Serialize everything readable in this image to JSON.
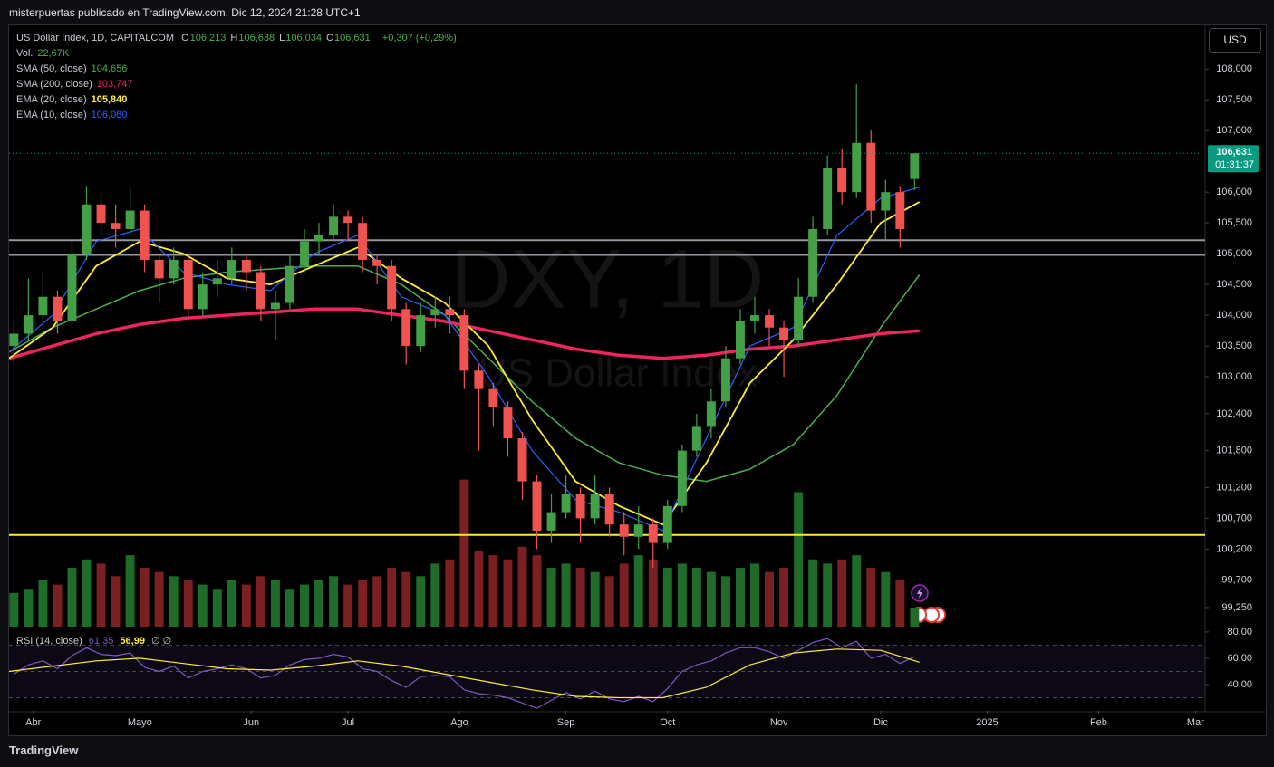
{
  "header": {
    "credit": "misterpuertas publicado en TradingView.com, Dic 12, 2024 21:28 UTC+1",
    "symbol": "US Dollar Index, 1D, CAPITALCOM",
    "ohlc": [
      {
        "label": "O",
        "value": "106,213"
      },
      {
        "label": "H",
        "value": "106,638"
      },
      {
        "label": "L",
        "value": "106,034"
      },
      {
        "label": "C",
        "value": "106,631"
      }
    ],
    "change": "+0,307 (+0,29%)",
    "currency": "USD",
    "brand": "TradingView"
  },
  "chart_data": {
    "type": "candlestick",
    "watermark": [
      "DXY, 1D",
      "US Dollar Index"
    ],
    "up_color": "#43a047",
    "down_color": "#ef5350",
    "grid": false,
    "xlim": [
      -5,
      242
    ],
    "xticks": [
      {
        "value": 0,
        "label": "Abr"
      },
      {
        "value": 22,
        "label": "Mayo"
      },
      {
        "value": 45,
        "label": "Jun"
      },
      {
        "value": 65,
        "label": "Jul"
      },
      {
        "value": 88,
        "label": "Ago"
      },
      {
        "value": 110,
        "label": "Sep"
      },
      {
        "value": 131,
        "label": "Oct"
      },
      {
        "value": 154,
        "label": "Nov"
      },
      {
        "value": 175,
        "label": "Dic"
      },
      {
        "value": 197,
        "label": "2025"
      },
      {
        "value": 220,
        "label": "Feb"
      },
      {
        "value": 240,
        "label": "Mar"
      }
    ],
    "ylim": [
      98.94,
      108.71
    ],
    "yticks": [
      {
        "value": 108,
        "label": "108,000"
      },
      {
        "value": 107.5,
        "label": "107,500"
      },
      {
        "value": 107,
        "label": "107,000"
      },
      {
        "value": 106,
        "label": "106,000"
      },
      {
        "value": 105.5,
        "label": "105,500"
      },
      {
        "value": 105,
        "label": "105,000"
      },
      {
        "value": 104.5,
        "label": "104,500"
      },
      {
        "value": 104,
        "label": "104,000"
      },
      {
        "value": 103.5,
        "label": "103,500"
      },
      {
        "value": 103,
        "label": "103,000"
      },
      {
        "value": 102.4,
        "label": "102,400"
      },
      {
        "value": 101.8,
        "label": "101,800"
      },
      {
        "value": 101.2,
        "label": "101,200"
      },
      {
        "value": 100.7,
        "label": "100,700"
      },
      {
        "value": 100.2,
        "label": "100,200"
      },
      {
        "value": 99.7,
        "label": "99,700"
      },
      {
        "value": 99.25,
        "label": "99,250"
      }
    ],
    "last_price": {
      "value": 106.631,
      "label": "106,631",
      "countdown": "01:31:37",
      "color": "#089981"
    },
    "hlines": [
      {
        "value": 105.22,
        "color": "#9598a1"
      },
      {
        "value": 104.98,
        "color": "#9598a1"
      },
      {
        "value": 100.43,
        "color": "#ffeb3b"
      }
    ],
    "candles": {
      "x": [
        -4,
        -1,
        2,
        5,
        8,
        11,
        14,
        17,
        20,
        23,
        26,
        29,
        32,
        35,
        38,
        41,
        44,
        47,
        50,
        53,
        56,
        59,
        62,
        65,
        68,
        71,
        74,
        77,
        80,
        83,
        86,
        89,
        92,
        95,
        98,
        101,
        104,
        107,
        110,
        113,
        116,
        119,
        122,
        125,
        128,
        131,
        134,
        137,
        140,
        143,
        146,
        149,
        152,
        155,
        158,
        161,
        164,
        167,
        170,
        173,
        176,
        179,
        182
      ],
      "open": [
        103.5,
        103.7,
        104.0,
        104.3,
        103.9,
        105.0,
        105.8,
        105.5,
        105.4,
        105.7,
        104.9,
        104.6,
        104.9,
        104.1,
        104.5,
        104.6,
        104.9,
        104.7,
        104.1,
        104.2,
        104.8,
        105.2,
        105.3,
        105.6,
        105.5,
        104.9,
        104.8,
        104.1,
        103.5,
        104.0,
        104.1,
        104.0,
        103.1,
        102.8,
        102.5,
        102.0,
        101.3,
        100.5,
        100.8,
        101.1,
        100.7,
        101.1,
        100.6,
        100.4,
        100.6,
        100.3,
        100.9,
        101.8,
        102.2,
        102.6,
        103.3,
        103.9,
        104.0,
        103.8,
        103.6,
        104.3,
        105.4,
        106.4,
        106.0,
        106.8,
        105.7,
        106.0,
        106.213
      ],
      "high": [
        103.9,
        104.6,
        104.7,
        104.4,
        105.2,
        106.1,
        106.0,
        105.8,
        106.1,
        105.8,
        105.0,
        105.1,
        105.0,
        104.7,
        104.9,
        105.1,
        105.0,
        104.8,
        104.4,
        105.0,
        105.4,
        105.5,
        105.8,
        105.7,
        105.6,
        105.0,
        104.9,
        104.2,
        104.2,
        104.3,
        104.3,
        104.1,
        103.2,
        102.9,
        102.6,
        102.1,
        101.4,
        101.1,
        101.4,
        101.2,
        101.4,
        101.2,
        100.8,
        100.9,
        100.7,
        101.0,
        101.9,
        102.4,
        102.8,
        103.5,
        104.1,
        104.3,
        104.1,
        103.9,
        104.6,
        105.6,
        106.6,
        106.7,
        107.75,
        107.0,
        106.2,
        106.1,
        106.638
      ],
      "low": [
        103.2,
        103.6,
        103.9,
        103.7,
        103.8,
        104.9,
        105.3,
        105.1,
        105.3,
        104.7,
        104.2,
        104.5,
        103.9,
        104.0,
        104.3,
        104.5,
        104.4,
        103.9,
        103.6,
        104.1,
        104.7,
        105.0,
        105.2,
        105.2,
        104.7,
        104.5,
        103.9,
        103.2,
        103.4,
        103.8,
        103.7,
        102.8,
        101.8,
        102.2,
        101.7,
        101.0,
        100.2,
        100.3,
        100.7,
        100.3,
        100.6,
        100.4,
        100.1,
        100.2,
        99.9,
        100.2,
        100.8,
        101.7,
        102.0,
        102.5,
        103.2,
        103.7,
        103.5,
        103.0,
        103.5,
        104.2,
        105.3,
        105.8,
        105.9,
        105.5,
        105.2,
        105.1,
        106.034
      ],
      "close": [
        103.7,
        104.0,
        104.3,
        103.9,
        105.0,
        105.8,
        105.5,
        105.4,
        105.7,
        104.9,
        104.6,
        104.9,
        104.1,
        104.5,
        104.6,
        104.9,
        104.7,
        104.1,
        104.2,
        104.8,
        105.2,
        105.3,
        105.6,
        105.5,
        104.9,
        104.8,
        104.1,
        103.5,
        104.0,
        104.1,
        104.0,
        103.1,
        102.8,
        102.5,
        102.0,
        101.3,
        100.5,
        100.8,
        101.1,
        100.7,
        101.1,
        100.6,
        100.4,
        100.6,
        100.3,
        100.9,
        101.8,
        102.2,
        102.6,
        103.3,
        103.9,
        104.0,
        103.8,
        103.6,
        104.3,
        105.4,
        106.4,
        106.0,
        106.8,
        105.7,
        106.0,
        105.4,
        106.631
      ]
    },
    "volume": {
      "name": "Vol.",
      "value_label": "22,67K",
      "up_color": "#1e6b2a",
      "down_color": "#7a1f22",
      "vlim": [
        0,
        250
      ],
      "values": [
        40,
        45,
        55,
        50,
        70,
        80,
        75,
        60,
        85,
        70,
        65,
        60,
        55,
        50,
        45,
        55,
        50,
        60,
        55,
        45,
        50,
        55,
        60,
        50,
        55,
        60,
        70,
        65,
        60,
        75,
        80,
        175,
        90,
        85,
        80,
        95,
        85,
        70,
        75,
        70,
        65,
        60,
        75,
        85,
        80,
        70,
        75,
        70,
        65,
        60,
        70,
        75,
        65,
        70,
        160,
        80,
        75,
        80,
        85,
        70,
        65,
        55,
        22.67
      ]
    },
    "lines": [
      {
        "name": "SMA (50, close)",
        "value_label": "104,656",
        "color": "#4caf50",
        "width": 1.5,
        "x": [
          -5,
          4,
          13,
          22,
          31,
          40,
          49,
          58,
          67,
          76,
          85,
          94,
          103,
          112,
          121,
          130,
          139,
          148,
          157,
          166,
          175,
          183
        ],
        "values": [
          103.4,
          103.8,
          104.1,
          104.4,
          104.6,
          104.7,
          104.75,
          104.8,
          104.8,
          104.5,
          104.0,
          103.3,
          102.6,
          102.0,
          101.6,
          101.4,
          101.3,
          101.5,
          101.9,
          102.7,
          103.8,
          104.656
        ]
      },
      {
        "name": "SMA (200, close)",
        "value_label": "103,747",
        "color": "#f0245e",
        "width": 3.5,
        "x": [
          -5,
          4,
          13,
          22,
          31,
          40,
          49,
          58,
          67,
          76,
          85,
          94,
          103,
          112,
          121,
          130,
          139,
          148,
          157,
          166,
          175,
          183
        ],
        "values": [
          103.3,
          103.5,
          103.7,
          103.85,
          103.95,
          104.0,
          104.05,
          104.1,
          104.1,
          104.0,
          103.9,
          103.75,
          103.6,
          103.45,
          103.35,
          103.3,
          103.35,
          103.45,
          103.5,
          103.6,
          103.7,
          103.747
        ]
      },
      {
        "name": "EMA (20, close)",
        "value_label": "105,840",
        "color": "#ffeb3b",
        "width": 1.8,
        "x": [
          -5,
          4,
          13,
          22,
          31,
          40,
          49,
          58,
          67,
          76,
          85,
          94,
          103,
          112,
          121,
          130,
          139,
          148,
          157,
          166,
          175,
          183
        ],
        "values": [
          103.3,
          103.8,
          104.8,
          105.2,
          105.0,
          104.6,
          104.5,
          104.8,
          105.1,
          104.6,
          104.2,
          103.5,
          102.3,
          101.3,
          100.9,
          100.6,
          101.6,
          102.9,
          103.6,
          104.5,
          105.5,
          105.84
        ]
      },
      {
        "name": "EMA (10, close)",
        "value_label": "106,080",
        "color": "#2962ff",
        "width": 1.2,
        "x": [
          -5,
          4,
          13,
          22,
          31,
          40,
          49,
          58,
          67,
          76,
          85,
          94,
          103,
          112,
          121,
          130,
          139,
          148,
          157,
          166,
          175,
          183
        ],
        "values": [
          103.4,
          104.0,
          105.2,
          105.4,
          104.7,
          104.5,
          104.4,
          105.0,
          105.3,
          104.3,
          104.0,
          103.0,
          101.8,
          101.0,
          100.8,
          100.5,
          102.0,
          103.5,
          103.8,
          105.3,
          105.9,
          106.08
        ]
      }
    ],
    "rsi": {
      "name": "RSI (14, close)",
      "value_label": "61,35",
      "color": "#7e57c2",
      "ma_label": "56,99",
      "ma_color": "#ffeb3b",
      "extra": "∅ ∅",
      "ylim": [
        20,
        82
      ],
      "yticks": [
        {
          "value": 80,
          "label": "80,00"
        },
        {
          "value": 60,
          "label": "60,00"
        },
        {
          "value": 40,
          "label": "40,00"
        }
      ],
      "levels": [
        70,
        50,
        30
      ],
      "values": [
        48,
        55,
        58,
        52,
        62,
        68,
        63,
        62,
        64,
        53,
        50,
        54,
        45,
        50,
        52,
        55,
        52,
        45,
        47,
        55,
        59,
        60,
        63,
        61,
        52,
        50,
        43,
        38,
        46,
        47,
        46,
        36,
        33,
        32,
        30,
        26,
        22,
        28,
        34,
        29,
        35,
        29,
        27,
        31,
        27,
        37,
        50,
        55,
        58,
        64,
        68,
        68,
        65,
        60,
        66,
        72,
        75,
        68,
        73,
        60,
        63,
        56,
        61.35
      ],
      "ma_x": [
        -5,
        4,
        13,
        22,
        31,
        40,
        49,
        58,
        67,
        76,
        85,
        94,
        103,
        112,
        121,
        130,
        139,
        148,
        157,
        166,
        175,
        183
      ],
      "ma_values": [
        50,
        54,
        58,
        60,
        56,
        52,
        51,
        54,
        58,
        54,
        48,
        42,
        36,
        31,
        30,
        30,
        38,
        55,
        64,
        67,
        66,
        56.99
      ]
    }
  }
}
